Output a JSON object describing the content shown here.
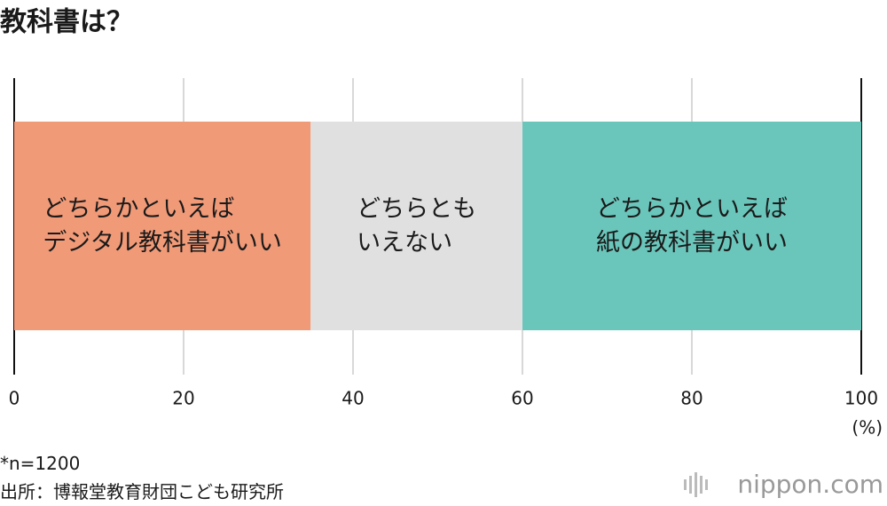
{
  "chart_data": {
    "type": "stacked-bar",
    "orientation": "horizontal",
    "title": "教科書は？",
    "categories": [
      null
    ],
    "series": [
      {
        "name": "どちらかといえば\nデジタル教科書がいい",
        "color": "#f19a78",
        "values": [
          35
        ]
      },
      {
        "name": "どちらともいえない",
        "display_name": "どちらとも\nいえない",
        "color": "#e0e0e0",
        "values": [
          25
        ]
      },
      {
        "name": "どちらかといえば\n紙の教科書がいい",
        "color": "#6ac6bb",
        "values": [
          40
        ]
      }
    ],
    "xlim": [
      0,
      100
    ],
    "xticks": [
      0,
      20,
      40,
      60,
      80,
      100
    ],
    "x_unit": "(%)",
    "grid": true,
    "note": "*n=1200",
    "source": "出所：博報堂教育財団こども研究所",
    "logo": "nippon.com"
  }
}
